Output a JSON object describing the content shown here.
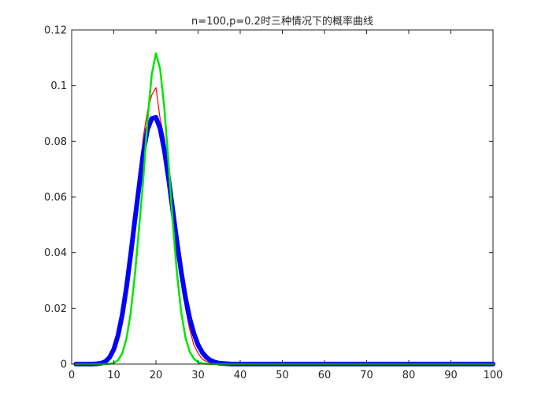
{
  "chart_data": {
    "type": "line",
    "title": "n=100,p=0.2时三种情况下的概率曲线",
    "xlabel": "",
    "ylabel": "",
    "xlim": [
      0,
      100
    ],
    "ylim": [
      0,
      0.12
    ],
    "xticks": [
      0,
      10,
      20,
      30,
      40,
      50,
      60,
      70,
      80,
      90,
      100
    ],
    "xtick_labels": [
      "0",
      "10",
      "20",
      "30",
      "40",
      "50",
      "60",
      "70",
      "80",
      "90",
      "100"
    ],
    "yticks": [
      0,
      0.02,
      0.04,
      0.06,
      0.08,
      0.1,
      0.12
    ],
    "ytick_labels": [
      "0",
      "0.02",
      "0.04",
      "0.06",
      "0.08",
      "0.1",
      "0.12"
    ],
    "grid": false,
    "legend": "none",
    "x": [
      1,
      2,
      3,
      4,
      5,
      6,
      7,
      8,
      9,
      10,
      11,
      12,
      13,
      14,
      15,
      16,
      17,
      18,
      19,
      20,
      21,
      22,
      23,
      24,
      25,
      26,
      27,
      28,
      29,
      30,
      31,
      32,
      33,
      34,
      35,
      36,
      37,
      38,
      39,
      40,
      41,
      42,
      43,
      44,
      45,
      46,
      47,
      48,
      49,
      50,
      51,
      52,
      53,
      54,
      55,
      56,
      57,
      58,
      59,
      60,
      61,
      62,
      63,
      64,
      65,
      66,
      67,
      68,
      69,
      70,
      71,
      72,
      73,
      74,
      75,
      76,
      77,
      78,
      79,
      80,
      81,
      82,
      83,
      84,
      85,
      86,
      87,
      88,
      89,
      90,
      91,
      92,
      93,
      94,
      95,
      96,
      97,
      98,
      99,
      100
    ],
    "series": [
      {
        "color": "#ff0000",
        "width": 1.2,
        "values": [
          0,
          0,
          0,
          0,
          0,
          0.0001,
          0.0003,
          0.0009,
          0.0024,
          0.0053,
          0.0103,
          0.0177,
          0.0277,
          0.0393,
          0.0531,
          0.0664,
          0.0815,
          0.091,
          0.0966,
          0.0993,
          0.088,
          0.0811,
          0.0685,
          0.0544,
          0.0426,
          0.0316,
          0.0201,
          0.0125,
          0.0069,
          0.0039,
          0.0018,
          0.0009,
          0.0004,
          0.0001,
          0,
          0,
          0,
          0,
          0,
          0,
          0,
          0,
          0,
          0,
          0,
          0,
          0,
          0,
          0,
          0,
          0,
          0,
          0,
          0,
          0,
          0,
          0,
          0,
          0,
          0,
          0,
          0,
          0,
          0,
          0,
          0,
          0,
          0,
          0,
          0,
          0,
          0,
          0,
          0,
          0,
          0,
          0,
          0,
          0,
          0,
          0,
          0,
          0,
          0,
          0,
          0,
          0,
          0,
          0,
          0,
          0,
          0,
          0,
          0,
          0,
          0,
          0,
          0,
          0,
          0
        ]
      },
      {
        "color": "#0000ff",
        "width": 6,
        "values": [
          0,
          0,
          0,
          0,
          0,
          0.0001,
          0.0003,
          0.0009,
          0.0024,
          0.0053,
          0.0103,
          0.0177,
          0.0275,
          0.0392,
          0.0518,
          0.0638,
          0.0759,
          0.0843,
          0.0882,
          0.0886,
          0.0845,
          0.0768,
          0.0666,
          0.0552,
          0.0437,
          0.0331,
          0.0239,
          0.0165,
          0.011,
          0.0069,
          0.0042,
          0.0024,
          0.0013,
          0.0007,
          0.0003,
          0.0002,
          0.0001,
          0,
          0,
          0,
          0,
          0,
          0,
          0,
          0,
          0,
          0,
          0,
          0,
          0,
          0,
          0,
          0,
          0,
          0,
          0,
          0,
          0,
          0,
          0,
          0,
          0,
          0,
          0,
          0,
          0,
          0,
          0,
          0,
          0,
          0,
          0,
          0,
          0,
          0,
          0,
          0,
          0,
          0,
          0,
          0,
          0,
          0,
          0,
          0,
          0,
          0,
          0,
          0,
          0,
          0,
          0,
          0,
          0,
          0,
          0,
          0,
          0,
          0,
          0
        ]
      },
      {
        "color": "#00e600",
        "width": 2.5,
        "values": [
          0,
          0,
          0,
          0,
          0,
          0,
          0,
          0,
          0.0001,
          0.0004,
          0.0014,
          0.0038,
          0.0091,
          0.0182,
          0.032,
          0.049,
          0.0665,
          0.0877,
          0.104,
          0.1116,
          0.106,
          0.0918,
          0.072,
          0.0508,
          0.0324,
          0.0186,
          0.0096,
          0.0045,
          0.0019,
          0.0007,
          0.0002,
          0.0001,
          0,
          0,
          0,
          0,
          0,
          0,
          0,
          0,
          0,
          0,
          0,
          0,
          0,
          0,
          0,
          0,
          0,
          0,
          0,
          0,
          0,
          0,
          0,
          0,
          0,
          0,
          0,
          0,
          0,
          0,
          0,
          0,
          0,
          0,
          0,
          0,
          0,
          0,
          0,
          0,
          0,
          0,
          0,
          0,
          0,
          0,
          0,
          0,
          0,
          0,
          0,
          0,
          0,
          0,
          0,
          0,
          0,
          0,
          0,
          0,
          0,
          0,
          0,
          0,
          0,
          0,
          0,
          0
        ]
      }
    ]
  }
}
